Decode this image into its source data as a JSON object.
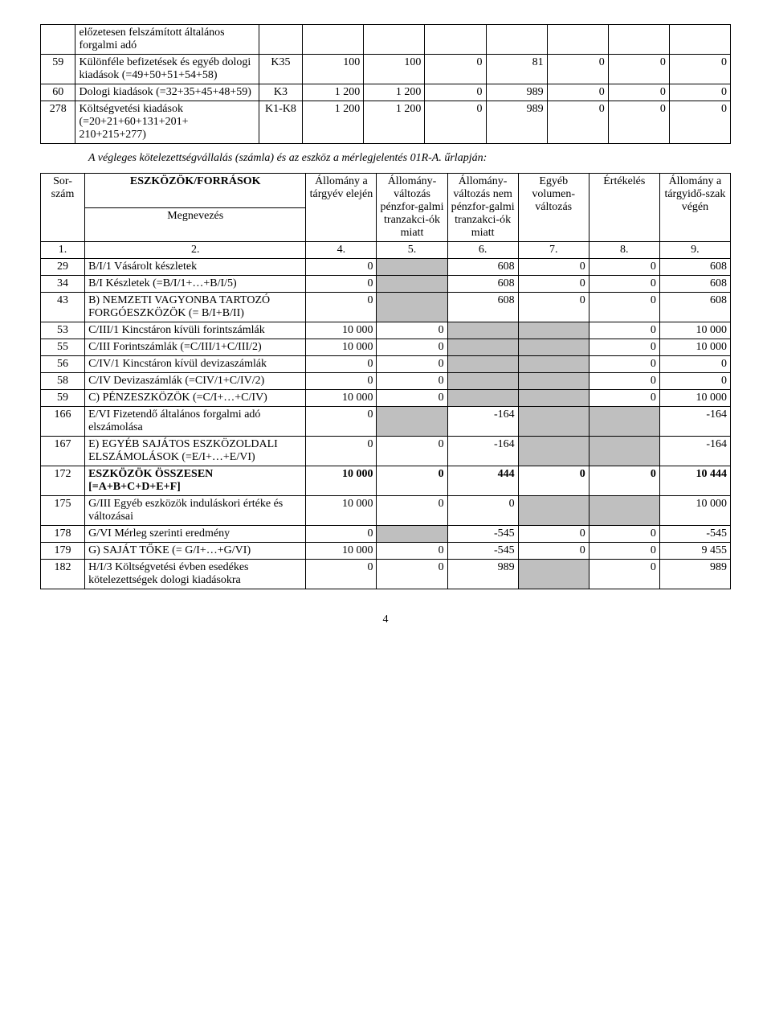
{
  "table1": {
    "rows": [
      {
        "n": "",
        "desc": "előzetesen felszámított általános forgalmi adó",
        "code": "",
        "v": [
          "",
          "",
          "",
          "",
          "",
          "",
          ""
        ]
      },
      {
        "n": "59",
        "desc": "Különféle befizetések és egyéb dologi kiadások (=49+50+51+54+58)",
        "code": "K35",
        "v": [
          "100",
          "100",
          "0",
          "81",
          "0",
          "0",
          "0"
        ]
      },
      {
        "n": "60",
        "desc": "Dologi kiadások (=32+35+45+48+59)",
        "code": "K3",
        "v": [
          "1 200",
          "1 200",
          "0",
          "989",
          "0",
          "0",
          "0"
        ]
      },
      {
        "n": "278",
        "desc": "Költségvetési kiadások (=20+21+60+131+201+ 210+215+277)",
        "code": "K1-K8",
        "v": [
          "1 200",
          "1 200",
          "0",
          "989",
          "0",
          "0",
          "0"
        ]
      }
    ]
  },
  "inter_text": "A végleges kötelezettségvállalás (számla) és az eszköz a mérlegjelentés 01R-A. űrlapján:",
  "table2": {
    "header": {
      "sorszam": "Sor-szám",
      "eszkozok": "ESZKÖZÖK/FORRÁSOK",
      "megnevezes": "Megnevezés",
      "c1": "Állomány a tárgyév elején",
      "c2": "Állomány-változás pénzfor-galmi tranzakci-ók miatt",
      "c3": "Állomány-változás nem pénzfor-galmi tranzakci-ók miatt",
      "c4": "Egyéb volumen-változás",
      "c5": "Értékelés",
      "c6": "Állomány a tárgyidő-szak végén"
    },
    "numrow": [
      "1.",
      "2.",
      "4.",
      "5.",
      "6.",
      "7.",
      "8.",
      "9."
    ],
    "rows": [
      {
        "n": "29",
        "desc": "B/I/1 Vásárolt készletek",
        "v": [
          "0",
          "",
          "608",
          "0",
          "0",
          "608"
        ],
        "shade": [
          0,
          1,
          0,
          0,
          0,
          0
        ]
      },
      {
        "n": "34",
        "desc": "B/I Készletek (=B/I/1+…+B/I/5)",
        "v": [
          "0",
          "",
          "608",
          "0",
          "0",
          "608"
        ],
        "shade": [
          0,
          1,
          0,
          0,
          0,
          0
        ]
      },
      {
        "n": "43",
        "desc": "B) NEMZETI VAGYONBA TARTOZÓ FORGÓESZKÖZÖK (= B/I+B/II)",
        "v": [
          "0",
          "",
          "608",
          "0",
          "0",
          "608"
        ],
        "shade": [
          0,
          1,
          0,
          0,
          0,
          0
        ]
      },
      {
        "n": "53",
        "desc": "C/III/1 Kincstáron kívüli forintszámlák",
        "v": [
          "10 000",
          "0",
          "",
          "",
          "0",
          "10 000"
        ],
        "shade": [
          0,
          0,
          1,
          1,
          0,
          0
        ]
      },
      {
        "n": "55",
        "desc": "C/III Forintszámlák (=C/III/1+C/III/2)",
        "v": [
          "10 000",
          "0",
          "",
          "",
          "0",
          "10 000"
        ],
        "shade": [
          0,
          0,
          1,
          1,
          0,
          0
        ]
      },
      {
        "n": "56",
        "desc": "C/IV/1 Kincstáron kívül devizaszámlák",
        "v": [
          "0",
          "0",
          "",
          "",
          "0",
          "0"
        ],
        "shade": [
          0,
          0,
          1,
          1,
          0,
          0
        ]
      },
      {
        "n": "58",
        "desc": "C/IV Devizaszámlák (=CIV/1+C/IV/2)",
        "v": [
          "0",
          "0",
          "",
          "",
          "0",
          "0"
        ],
        "shade": [
          0,
          0,
          1,
          1,
          0,
          0
        ]
      },
      {
        "n": "59",
        "desc": "C) PÉNZESZKÖZÖK (=C/I+…+C/IV)",
        "v": [
          "10 000",
          "0",
          "",
          "",
          "0",
          "10 000"
        ],
        "shade": [
          0,
          0,
          1,
          1,
          0,
          0
        ]
      },
      {
        "n": "166",
        "desc": "E/VI Fizetendő általános forgalmi adó elszámolása",
        "v": [
          "0",
          "",
          "-164",
          "",
          "",
          "-164"
        ],
        "shade": [
          0,
          1,
          0,
          1,
          1,
          0
        ]
      },
      {
        "n": "167",
        "desc": "E) EGYÉB SAJÁTOS ESZKÖZOLDALI ELSZÁMOLÁSOK (=E/I+…+E/VI)",
        "v": [
          "0",
          "0",
          "-164",
          "",
          "",
          "-164"
        ],
        "shade": [
          0,
          0,
          0,
          1,
          1,
          0
        ]
      },
      {
        "n": "172",
        "desc": "ESZKÖZÖK ÖSSZESEN [=A+B+C+D+E+F]",
        "bold": true,
        "v": [
          "10 000",
          "0",
          "444",
          "0",
          "0",
          "10 444"
        ],
        "shade": [
          0,
          0,
          0,
          0,
          0,
          0
        ]
      },
      {
        "n": "175",
        "desc": "G/III Egyéb eszközök induláskori értéke és változásai",
        "v": [
          "10 000",
          "0",
          "0",
          "",
          "",
          "10 000"
        ],
        "shade": [
          0,
          0,
          0,
          1,
          1,
          0
        ]
      },
      {
        "n": "178",
        "desc": "G/VI Mérleg szerinti eredmény",
        "v": [
          "0",
          "",
          "-545",
          "0",
          "0",
          "-545"
        ],
        "shade": [
          0,
          1,
          0,
          0,
          0,
          0
        ]
      },
      {
        "n": "179",
        "desc": "G) SAJÁT TŐKE (= G/I+…+G/VI)",
        "v": [
          "10 000",
          "0",
          "-545",
          "0",
          "0",
          "9 455"
        ],
        "shade": [
          0,
          0,
          0,
          0,
          0,
          0
        ]
      },
      {
        "n": "182",
        "desc": "H/I/3 Költségvetési évben esedékes kötelezettségek dologi kiadásokra",
        "v": [
          "0",
          "0",
          "989",
          "",
          "0",
          "989"
        ],
        "shade": [
          0,
          0,
          0,
          1,
          0,
          0
        ]
      }
    ]
  },
  "page_number": "4"
}
